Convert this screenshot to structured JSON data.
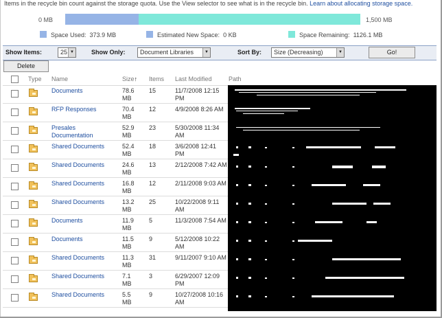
{
  "intro": {
    "text": "Items in the recycle bin count against the storage quota. Use the View selector to see what is in the recycle bin.",
    "link": "Learn about allocating storage space."
  },
  "quota": {
    "min_label": "0 MB",
    "max_label": "1,500 MB",
    "used_fraction": 0.249,
    "legend": [
      {
        "label": "Space Used:",
        "value": "373.9 MB",
        "color": "#96b4e6"
      },
      {
        "label": "Estimated New Space:",
        "value": "0 KB",
        "color": "#96b4e6"
      },
      {
        "label": "Space Remaining:",
        "value": "1126.1 MB",
        "color": "#7fe8da"
      }
    ]
  },
  "filters": {
    "show_items_label": "Show Items:",
    "show_items_value": "25",
    "show_only_label": "Show Only:",
    "show_only_value": "Document Libraries",
    "sort_by_label": "Sort By:",
    "sort_by_value": "Size (Decreasing)",
    "go_label": "Go!"
  },
  "delete_label": "Delete",
  "columns": {
    "type": "Type",
    "name": "Name",
    "size": "Size",
    "size_sort_icon": "↑",
    "items": "Items",
    "modified": "Last Modified",
    "path": "Path"
  },
  "rows": [
    {
      "name": "Documents",
      "size": "78.6 MB",
      "items": "15",
      "modified": "11/7/2008 12:15 PM"
    },
    {
      "name": "RFP Responses",
      "size": "70.4 MB",
      "items": "12",
      "modified": "4/9/2008 8:26 AM"
    },
    {
      "name": "Presales Documentation",
      "size": "52.9 MB",
      "items": "23",
      "modified": "5/30/2008 11:34 AM"
    },
    {
      "name": "Shared Documents",
      "size": "52.4 MB",
      "items": "18",
      "modified": "3/6/2008 12:41 PM"
    },
    {
      "name": "Shared Documents",
      "size": "24.6 MB",
      "items": "13",
      "modified": "2/12/2008 7:42 AM"
    },
    {
      "name": "Shared Documents",
      "size": "16.8 MB",
      "items": "12",
      "modified": "2/11/2008 9:03 AM"
    },
    {
      "name": "Shared Documents",
      "size": "13.2 MB",
      "items": "25",
      "modified": "10/22/2008 9:11 AM"
    },
    {
      "name": "Documents",
      "size": "11.9 MB",
      "items": "5",
      "modified": "11/3/2008 7:54 AM"
    },
    {
      "name": "Documents",
      "size": "11.5 MB",
      "items": "9",
      "modified": "5/12/2008 10:22 AM"
    },
    {
      "name": "Shared Documents",
      "size": "11.3 MB",
      "items": "31",
      "modified": "9/11/2007 9:10 AM"
    },
    {
      "name": "Shared Documents",
      "size": "7.1 MB",
      "items": "3",
      "modified": "6/29/2007 12:09 PM"
    },
    {
      "name": "Shared Documents",
      "size": "5.5 MB",
      "items": "9",
      "modified": "10/27/2008 10:16 AM"
    }
  ]
}
